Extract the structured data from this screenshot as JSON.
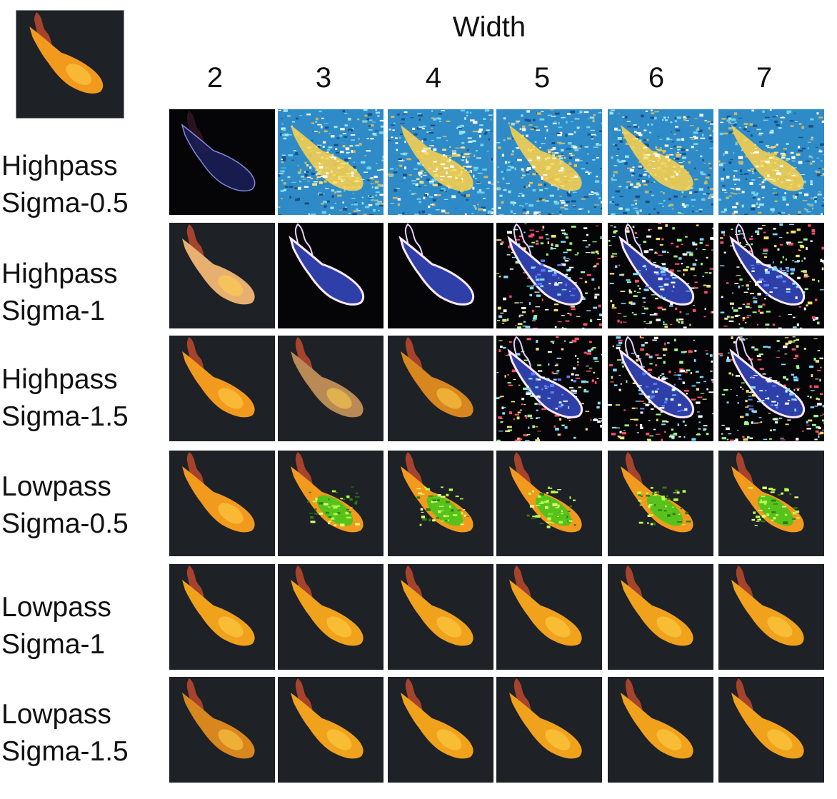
{
  "figure": {
    "column_axis_title": "Width",
    "columns": [
      "2",
      "3",
      "4",
      "5",
      "6",
      "7"
    ],
    "rows": [
      {
        "line1": "Highpass",
        "line2": "Sigma-0.5",
        "styles": [
          "hp_dark",
          "hp_noise",
          "hp_noise",
          "hp_noise",
          "hp_noise",
          "hp_noise"
        ]
      },
      {
        "line1": "Highpass",
        "line2": "Sigma-1",
        "styles": [
          "fish_pale",
          "edge_dark",
          "edge_dark",
          "edge_noisy",
          "edge_noisy",
          "edge_noisy"
        ]
      },
      {
        "line1": "Highpass",
        "line2": "Sigma-1.5",
        "styles": [
          "fish_bright",
          "fish_muted",
          "fish_dim",
          "edge_noisy",
          "edge_noisy",
          "edge_noisy"
        ]
      },
      {
        "line1": "Lowpass",
        "line2": "Sigma-0.5",
        "styles": [
          "fish_bright",
          "fish_green",
          "fish_green",
          "fish_green",
          "fish_green",
          "fish_green"
        ]
      },
      {
        "line1": "Lowpass",
        "line2": "Sigma-1",
        "styles": [
          "fish_soft",
          "fish_soft",
          "fish_soft",
          "fish_soft",
          "fish_soft",
          "fish_soft"
        ]
      },
      {
        "line1": "Lowpass",
        "line2": "Sigma-1.5",
        "styles": [
          "fish_dim",
          "fish_soft",
          "fish_soft",
          "fish_soft",
          "fish_soft",
          "fish_soft"
        ]
      }
    ],
    "colors": {
      "background_dark": "#1e2125",
      "fish_orange": "#f29a1e",
      "fish_yellow": "#ffd24a",
      "tail_red": "#b4472f",
      "noise_blue": "#2e8bc7",
      "noise_cyan": "#9fe3f0",
      "edge_blue": "#2f3fa8",
      "green_body": "#58c21c"
    }
  }
}
